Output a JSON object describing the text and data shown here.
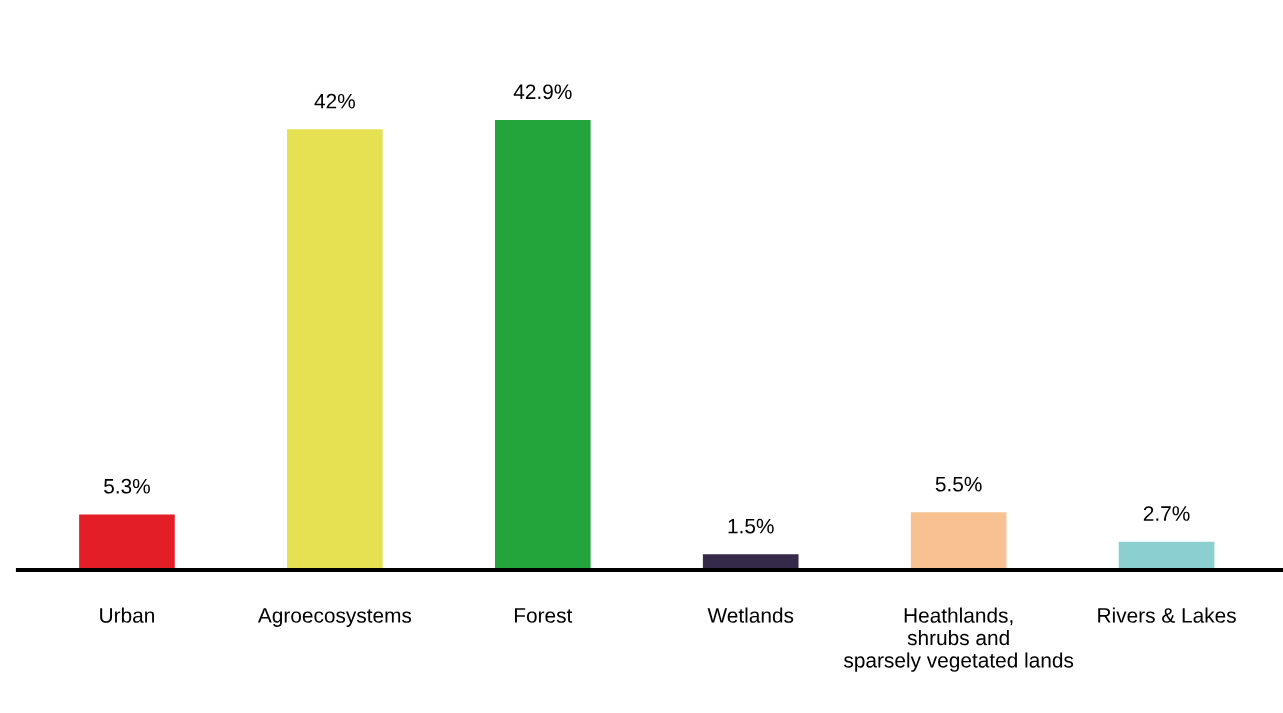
{
  "chart_data": {
    "type": "bar",
    "categories": [
      "Urban",
      "Agroecosystems",
      "Forest",
      "Wetlands",
      "Heathlands,\nshrubs and\nsparsely vegetated lands",
      "Rivers & Lakes"
    ],
    "values": [
      5.3,
      42,
      42.9,
      1.5,
      5.5,
      2.7
    ],
    "colors": [
      "#e41e26",
      "#e6e153",
      "#23a53b",
      "#352a4a",
      "#f7c191",
      "#8ccfd1"
    ],
    "value_labels": [
      "5.3%",
      "42%",
      "42.9%",
      "1.5%",
      "5.5%",
      "2.7%"
    ],
    "grid": false,
    "legend": false,
    "tick_labels": "x"
  }
}
